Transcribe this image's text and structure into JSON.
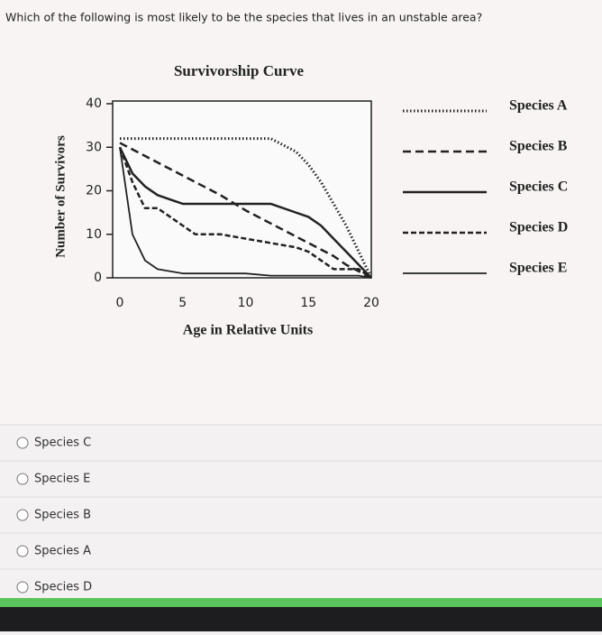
{
  "question": "Which of the following is most likely to be the species that lives in an unstable area?",
  "chart_data": {
    "type": "line",
    "title": "Survivorship Curve",
    "x_label": "Age in Relative Units",
    "y_label": "Number of Survivors",
    "x": [
      0,
      1,
      2,
      3,
      4,
      5,
      6,
      8,
      10,
      12,
      14,
      15,
      16,
      17,
      18,
      19,
      20
    ],
    "xlim": [
      0,
      20
    ],
    "xticks": [
      0,
      5,
      10,
      15,
      20
    ],
    "ylim": [
      0,
      40
    ],
    "yticks": [
      0,
      10,
      20,
      30,
      40
    ],
    "series": [
      {
        "name": "Species A",
        "color": "#222222",
        "dash": "dotted",
        "values": [
          32,
          32,
          32,
          32,
          32,
          32,
          32,
          32,
          32,
          32,
          29,
          26,
          22,
          17,
          12,
          6,
          0
        ]
      },
      {
        "name": "Species B",
        "color": "#222222",
        "dash": "long-dash",
        "values": [
          31,
          29.5,
          28,
          26.5,
          25,
          23.5,
          22,
          19,
          15.5,
          12.5,
          9.5,
          8,
          6.5,
          5,
          3,
          1.5,
          0
        ]
      },
      {
        "name": "Species C",
        "color": "#222222",
        "dash": "solid-thick",
        "values": [
          30,
          24,
          21,
          19,
          18,
          17,
          17,
          17,
          17,
          17,
          15,
          14,
          12,
          9,
          6,
          3,
          0
        ]
      },
      {
        "name": "Species D",
        "color": "#222222",
        "dash": "dash",
        "values": [
          30,
          22,
          16,
          16,
          14,
          12,
          10,
          10,
          9,
          8,
          7,
          6,
          4,
          2,
          2,
          2,
          0
        ]
      },
      {
        "name": "Species E",
        "color": "#222222",
        "dash": "solid-thin",
        "values": [
          30,
          10,
          4,
          2,
          1.5,
          1,
          1,
          1,
          1,
          0.5,
          0.5,
          0.5,
          0.5,
          0.5,
          0.5,
          0.5,
          0
        ]
      }
    ]
  },
  "options": [
    "Species C",
    "Species E",
    "Species B",
    "Species A",
    "Species D"
  ]
}
